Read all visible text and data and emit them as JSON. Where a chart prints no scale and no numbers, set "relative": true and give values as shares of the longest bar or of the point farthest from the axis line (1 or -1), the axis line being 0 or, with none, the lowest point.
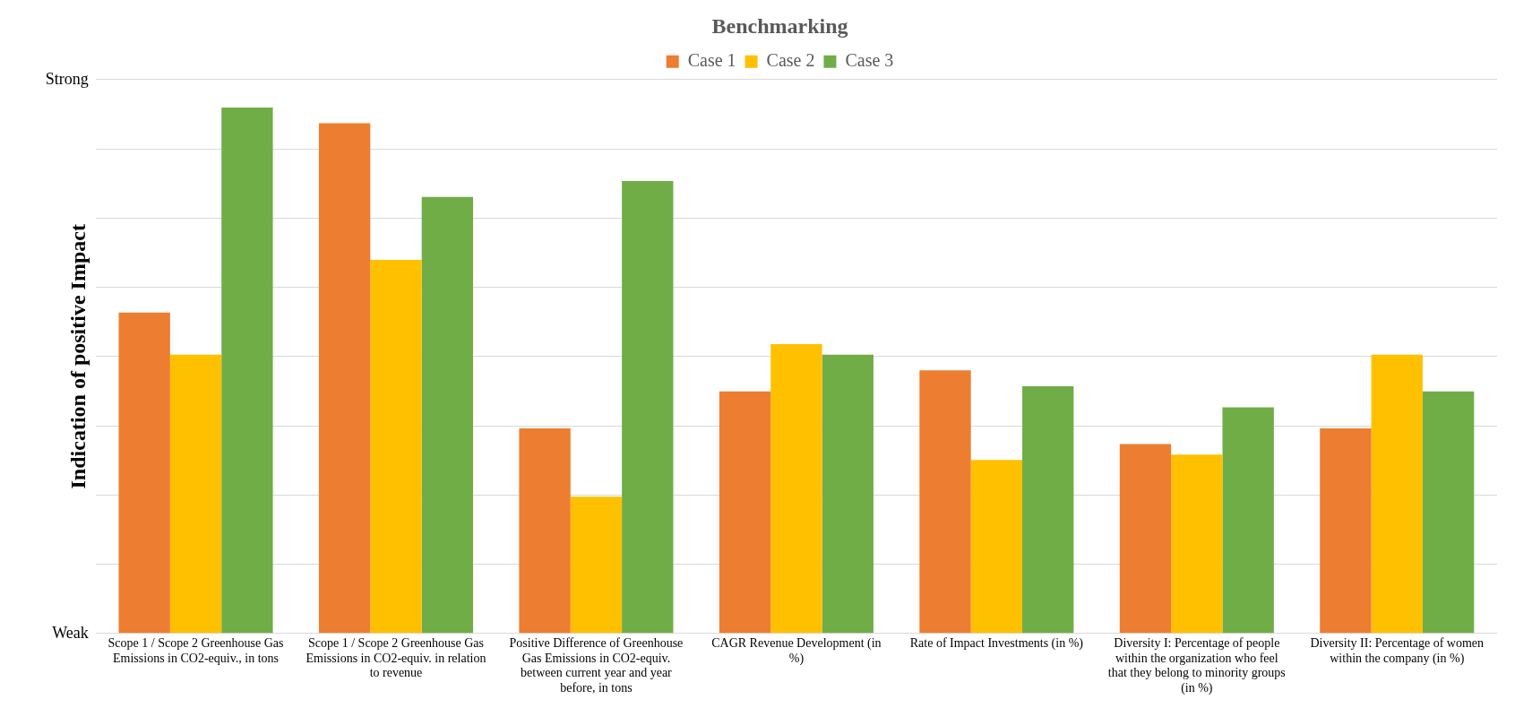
{
  "chart_data": {
    "type": "bar",
    "title": "Benchmarking",
    "ylabel": "Indication of positive Impact",
    "relative": true,
    "categories": [
      "Scope 1 / Scope 2 Greenhouse Gas Emissions in CO2-equiv., in tons",
      "Scope 1 / Scope 2 Greenhouse Gas Emissions in CO2-equiv. in relation to revenue",
      "Positive Difference of Greenhouse Gas Emissions in CO2-equiv. between current year and year before, in tons",
      "CAGR Revenue Development (in %)",
      "Rate of Impact Investments (in %)",
      "Diversity I: Percentage of people within the organization who feel that they belong to minority groups (in %)",
      "Diversity II: Percentage of women within the company (in %)"
    ],
    "series": [
      {
        "name": "Case 1",
        "color": "#ed7d31",
        "values": [
          0.61,
          0.97,
          0.39,
          0.46,
          0.5,
          0.36,
          0.39
        ]
      },
      {
        "name": "Case 2",
        "color": "#ffc000",
        "values": [
          0.53,
          0.71,
          0.26,
          0.55,
          0.33,
          0.34,
          0.53
        ]
      },
      {
        "name": "Case 3",
        "color": "#70ad47",
        "values": [
          1,
          0.83,
          0.86,
          0.53,
          0.47,
          0.43,
          0.46
        ]
      }
    ],
    "annotations": [
      "Weak",
      "Strong"
    ],
    "grid": "y",
    "legend": "top"
  }
}
